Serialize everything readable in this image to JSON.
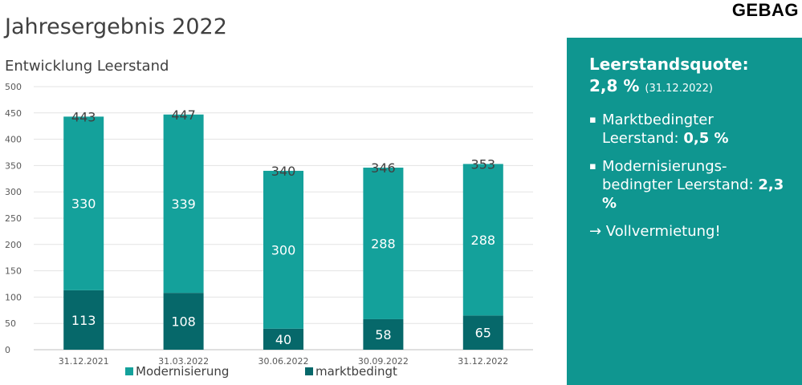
{
  "logo": "GEBAG",
  "title": "Jahresergebnis 2022",
  "chart_title": "Entwicklung Leerstand",
  "panel": {
    "heading": "Leerstandsquote:",
    "quote": "2,8 %",
    "quote_date": "(31.12.2022)",
    "bullet_icon": "square-bullet-icon",
    "items": [
      {
        "text": "Marktbedingter Leerstand:",
        "value": "0,5 %"
      },
      {
        "text": "Modernisierungs-bedingter Leerstand:",
        "value": "2,3 %"
      }
    ],
    "conclusion": "→ Vollvermietung!"
  },
  "colors": {
    "modernisierung": "#14a19b",
    "marktbedingt": "#06686a",
    "panel": "#0f9690"
  },
  "chart_data": {
    "type": "bar",
    "stacked": true,
    "categories": [
      "31.12.2021",
      "31.03.2022",
      "30.06.2022",
      "30.09.2022",
      "31.12.2022"
    ],
    "series": [
      {
        "name": "marktbedingt",
        "values": [
          113,
          108,
          40,
          58,
          65
        ]
      },
      {
        "name": "Modernisierung",
        "values": [
          330,
          339,
          300,
          288,
          288
        ]
      }
    ],
    "totals": [
      443,
      447,
      340,
      346,
      353
    ],
    "ylim": [
      0,
      500
    ],
    "yticks": [
      0,
      50,
      100,
      150,
      200,
      250,
      300,
      350,
      400,
      450,
      500
    ],
    "legend": [
      "Modernisierung",
      "marktbedingt"
    ],
    "legend_position": "bottom",
    "grid": true
  }
}
